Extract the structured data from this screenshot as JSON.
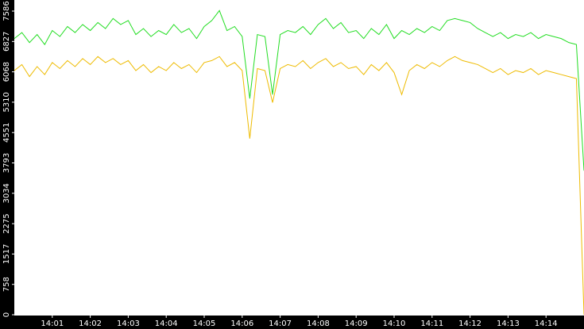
{
  "chart_data": {
    "type": "line",
    "x": [
      0,
      0.2,
      0.4,
      0.6,
      0.8,
      1.0,
      1.2,
      1.4,
      1.6,
      1.8,
      2.0,
      2.2,
      2.4,
      2.6,
      2.8,
      3.0,
      3.2,
      3.4,
      3.6,
      3.8,
      4.0,
      4.2,
      4.4,
      4.6,
      4.8,
      5.0,
      5.2,
      5.4,
      5.6,
      5.8,
      6.0,
      6.2,
      6.4,
      6.6,
      6.8,
      7.0,
      7.2,
      7.4,
      7.6,
      7.8,
      8.0,
      8.2,
      8.4,
      8.6,
      8.8,
      9.0,
      9.2,
      9.4,
      9.6,
      9.8,
      10.0,
      10.2,
      10.4,
      10.6,
      10.8,
      11.0,
      11.2,
      11.4,
      11.6,
      11.8,
      12.0,
      12.2,
      12.4,
      12.6,
      12.8,
      13.0,
      13.2,
      13.4,
      13.6,
      13.8,
      14.0,
      14.2,
      14.4,
      14.6,
      14.8,
      15.0
    ],
    "series": [
      {
        "color": "#22dd22",
        "values": [
          6900,
          7050,
          6800,
          7000,
          6750,
          7100,
          6950,
          7200,
          7050,
          7250,
          7100,
          7300,
          7150,
          7400,
          7250,
          7350,
          7000,
          7150,
          6950,
          7100,
          7000,
          7250,
          7050,
          7150,
          6900,
          7200,
          7350,
          7600,
          7100,
          7200,
          6950,
          5400,
          7000,
          6950,
          5500,
          7000,
          7100,
          7050,
          7200,
          7000,
          7250,
          7400,
          7150,
          7300,
          7050,
          7100,
          6900,
          7150,
          7000,
          7250,
          6900,
          7100,
          7000,
          7150,
          7050,
          7200,
          7100,
          7350,
          7400,
          7350,
          7300,
          7150,
          7050,
          6950,
          7050,
          6900,
          7000,
          6950,
          7050,
          6900,
          7000,
          6950,
          6900,
          6800,
          6750,
          3600
        ]
      },
      {
        "color": "#eebb00",
        "values": [
          6100,
          6250,
          5950,
          6200,
          6000,
          6300,
          6150,
          6350,
          6200,
          6400,
          6250,
          6450,
          6300,
          6400,
          6250,
          6350,
          6100,
          6250,
          6050,
          6200,
          6100,
          6300,
          6150,
          6250,
          6050,
          6300,
          6350,
          6450,
          6200,
          6300,
          6100,
          4400,
          6150,
          6100,
          5300,
          6150,
          6250,
          6200,
          6350,
          6150,
          6300,
          6400,
          6200,
          6300,
          6150,
          6200,
          6000,
          6250,
          6100,
          6300,
          6050,
          5500,
          6100,
          6250,
          6150,
          6300,
          6200,
          6350,
          6450,
          6350,
          6300,
          6250,
          6150,
          6050,
          6150,
          6000,
          6100,
          6050,
          6150,
          6000,
          6100,
          6050,
          6000,
          5950,
          5900,
          0
        ]
      }
    ],
    "xlim": [
      0,
      15
    ],
    "xticks": [
      {
        "value": 1,
        "label": "14:01"
      },
      {
        "value": 2,
        "label": "14:02"
      },
      {
        "value": 3,
        "label": "14:03"
      },
      {
        "value": 4,
        "label": "14:04"
      },
      {
        "value": 5,
        "label": "14:05"
      },
      {
        "value": 6,
        "label": "14:06"
      },
      {
        "value": 7,
        "label": "14:07"
      },
      {
        "value": 8,
        "label": "14:08"
      },
      {
        "value": 9,
        "label": "14:09"
      },
      {
        "value": 10,
        "label": "14:10"
      },
      {
        "value": 11,
        "label": "14:11"
      },
      {
        "value": 12,
        "label": "14:12"
      },
      {
        "value": 13,
        "label": "14:13"
      },
      {
        "value": 14,
        "label": "14:14"
      }
    ],
    "ylim": [
      0,
      7863
    ],
    "yticks": [
      0,
      758,
      1517,
      2275,
      3034,
      3793,
      4551,
      5310,
      6068,
      6827,
      7586
    ]
  }
}
